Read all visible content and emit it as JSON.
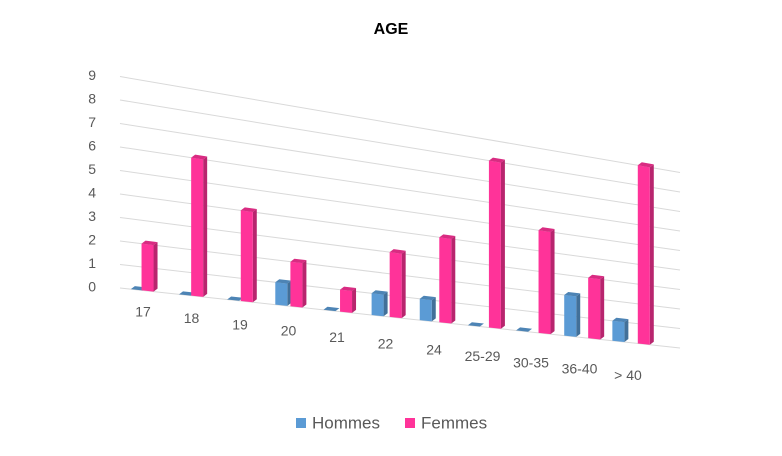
{
  "chart_data": {
    "type": "bar3d",
    "title": "AGE",
    "categories": [
      "17",
      "18",
      "19",
      "20",
      "21",
      "22",
      "24",
      "25-29",
      "30-35",
      "36-40",
      "> 40"
    ],
    "series": [
      {
        "name": "Hommes",
        "color": "#5b9bd5",
        "values": [
          0,
          0,
          0,
          1,
          0,
          1,
          1,
          0,
          0,
          2,
          1
        ]
      },
      {
        "name": "Femmes",
        "color": "#ff3399",
        "values": [
          2,
          6,
          4,
          2,
          1,
          3,
          4,
          8,
          5,
          3,
          9
        ]
      }
    ],
    "ylim": [
      0,
      9
    ],
    "yticks": [
      0,
      1,
      2,
      3,
      4,
      5,
      6,
      7,
      8,
      9
    ],
    "grid": true,
    "legend": "bottom"
  }
}
